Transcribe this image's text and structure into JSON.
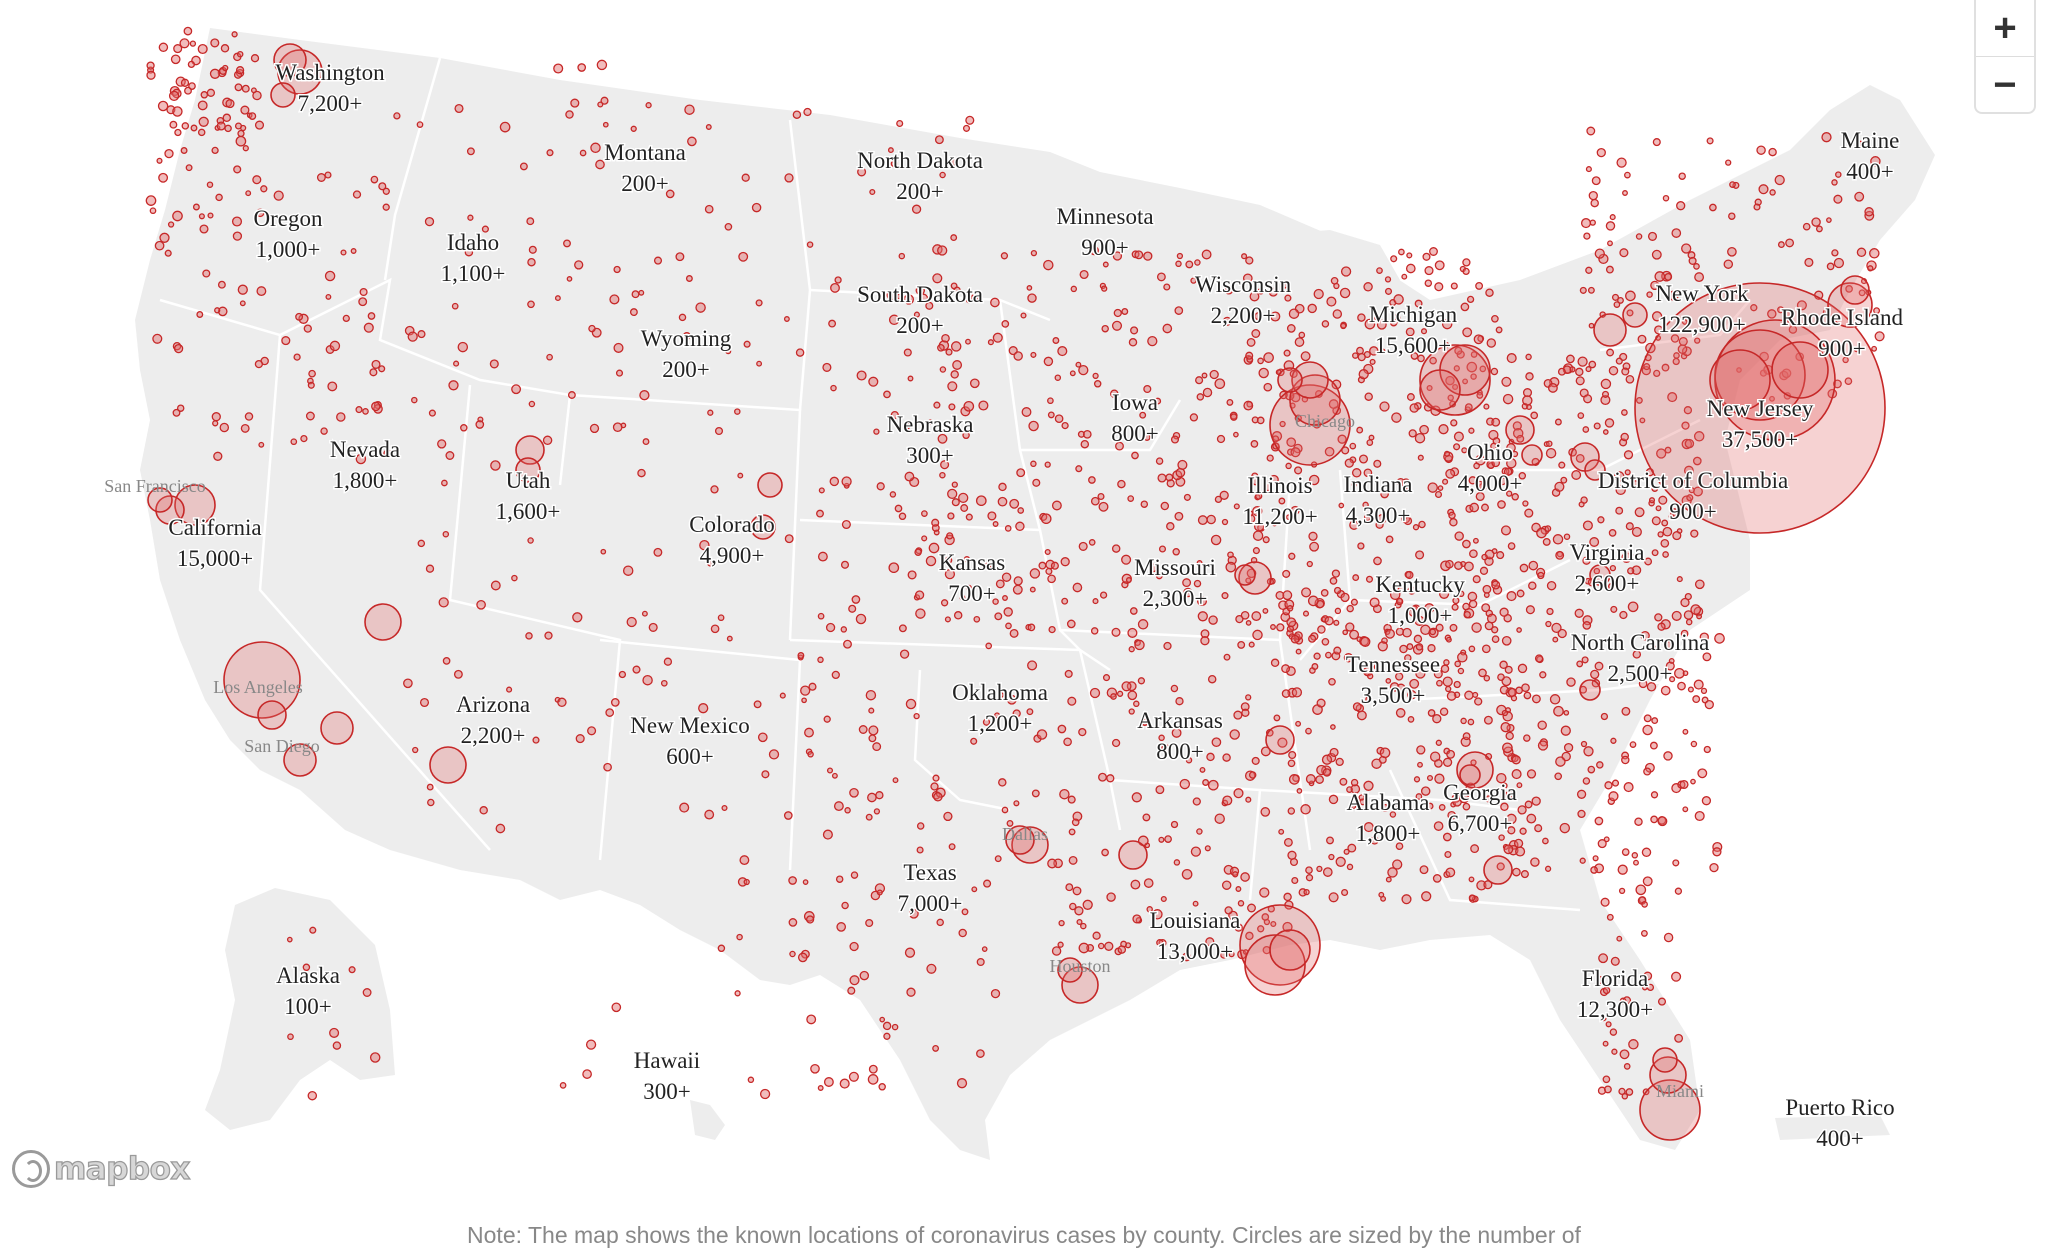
{
  "note": "Note: The map shows the known locations of coronavirus cases by county. Circles are sized by the number of",
  "attribution": "mapbox",
  "zoom_controls": {
    "zoom_in": "+",
    "zoom_out": "−"
  },
  "colors": {
    "land": "#ededed",
    "border": "#ffffff",
    "marker_fill": "#e06b6b",
    "marker_stroke": "#c62828",
    "label": "#222222",
    "city_label": "#888888",
    "background": "#ffffff"
  },
  "states": [
    {
      "name": "Washington",
      "cases": "7,200+"
    },
    {
      "name": "Oregon",
      "cases": "1,000+"
    },
    {
      "name": "California",
      "cases": "15,000+"
    },
    {
      "name": "Nevada",
      "cases": "1,800+"
    },
    {
      "name": "Idaho",
      "cases": "1,100+"
    },
    {
      "name": "Montana",
      "cases": "200+"
    },
    {
      "name": "Wyoming",
      "cases": "200+"
    },
    {
      "name": "Utah",
      "cases": "1,600+"
    },
    {
      "name": "Colorado",
      "cases": "4,900+"
    },
    {
      "name": "Arizona",
      "cases": "2,200+"
    },
    {
      "name": "New Mexico",
      "cases": "600+"
    },
    {
      "name": "North Dakota",
      "cases": "200+"
    },
    {
      "name": "South Dakota",
      "cases": "200+"
    },
    {
      "name": "Nebraska",
      "cases": "300+"
    },
    {
      "name": "Kansas",
      "cases": "700+"
    },
    {
      "name": "Oklahoma",
      "cases": "1,200+"
    },
    {
      "name": "Texas",
      "cases": "7,000+"
    },
    {
      "name": "Minnesota",
      "cases": "900+"
    },
    {
      "name": "Iowa",
      "cases": "800+"
    },
    {
      "name": "Missouri",
      "cases": "2,300+"
    },
    {
      "name": "Arkansas",
      "cases": "800+"
    },
    {
      "name": "Louisiana",
      "cases": "13,000+"
    },
    {
      "name": "Wisconsin",
      "cases": "2,200+"
    },
    {
      "name": "Illinois",
      "cases": "11,200+"
    },
    {
      "name": "Michigan",
      "cases": "15,600+"
    },
    {
      "name": "Indiana",
      "cases": "4,300+"
    },
    {
      "name": "Ohio",
      "cases": "4,000+"
    },
    {
      "name": "Kentucky",
      "cases": "1,000+"
    },
    {
      "name": "Tennessee",
      "cases": "3,500+"
    },
    {
      "name": "Alabama",
      "cases": "1,800+"
    },
    {
      "name": "Georgia",
      "cases": "6,700+"
    },
    {
      "name": "Florida",
      "cases": "12,300+"
    },
    {
      "name": "North Carolina",
      "cases": "2,500+"
    },
    {
      "name": "Virginia",
      "cases": "2,600+"
    },
    {
      "name": "District of Columbia",
      "cases": "900+"
    },
    {
      "name": "New Jersey",
      "cases": "37,500+"
    },
    {
      "name": "New York",
      "cases": "122,900+"
    },
    {
      "name": "Rhode Island",
      "cases": "900+"
    },
    {
      "name": "Maine",
      "cases": "400+"
    },
    {
      "name": "Alaska",
      "cases": "100+"
    },
    {
      "name": "Hawaii",
      "cases": "300+"
    },
    {
      "name": "Puerto Rico",
      "cases": "400+"
    }
  ],
  "cities": [
    "San Francisco",
    "Los Angeles",
    "San Diego",
    "Chicago",
    "Dallas",
    "Houston",
    "Miami"
  ]
}
